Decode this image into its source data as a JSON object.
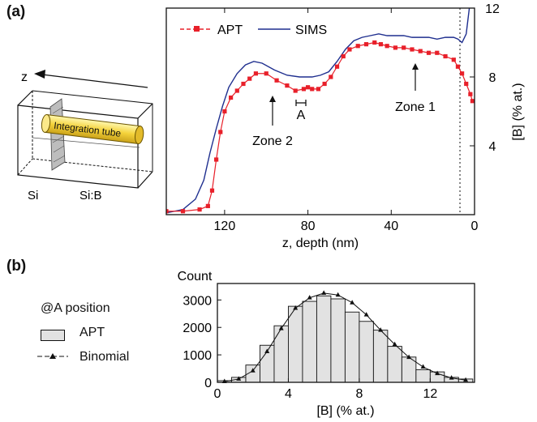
{
  "panel_a_label": "(a)",
  "panel_b_label": "(b)",
  "inset": {
    "axis_label": "z",
    "tube_label": "Integration tube",
    "left_region": "Si",
    "right_region": "Si:B"
  },
  "chart_data": [
    {
      "type": "line",
      "xlabel": "z, depth (nm)",
      "ylabel": "[B] (% at.)",
      "xlim": [
        148,
        0
      ],
      "ylim": [
        0,
        12
      ],
      "x_ticks": [
        120,
        80,
        40,
        0
      ],
      "y_ticks": [
        4,
        8,
        12
      ],
      "y_axis_side": "right",
      "legend": {
        "placement": "top-left",
        "entries": [
          "APT",
          "SIMS"
        ]
      },
      "annotations": [
        "Zone 2",
        "A",
        "Zone 1"
      ],
      "detection_limit_depth": 7,
      "colors": {
        "APT": "#e8202a",
        "SIMS": "#1f2f8f"
      },
      "series": [
        {
          "name": "APT",
          "marker": "square",
          "x": [
            148,
            140,
            132,
            128,
            126,
            124,
            122,
            120,
            117,
            114,
            111,
            108,
            105,
            100,
            95,
            90,
            86,
            82,
            80,
            78,
            75,
            72,
            69,
            66,
            63,
            60,
            56,
            52,
            48,
            45,
            42,
            38,
            34,
            30,
            26,
            22,
            18,
            14,
            10,
            8,
            6,
            4,
            2,
            1
          ],
          "y": [
            0.2,
            0.2,
            0.3,
            0.5,
            1.4,
            3.2,
            4.8,
            6.0,
            6.8,
            7.2,
            7.6,
            7.9,
            8.2,
            8.2,
            7.8,
            7.5,
            7.2,
            7.3,
            7.4,
            7.3,
            7.3,
            7.6,
            8.0,
            8.6,
            9.2,
            9.6,
            9.8,
            9.9,
            10.0,
            9.9,
            9.8,
            9.7,
            9.7,
            9.6,
            9.5,
            9.4,
            9.4,
            9.2,
            9.0,
            8.6,
            8.2,
            7.6,
            7.0,
            6.6
          ]
        },
        {
          "name": "SIMS",
          "x": [
            148,
            140,
            134,
            130,
            127,
            124,
            121,
            118,
            114,
            110,
            106,
            102,
            96,
            90,
            84,
            78,
            74,
            70,
            66,
            62,
            58,
            54,
            50,
            46,
            42,
            38,
            34,
            30,
            26,
            22,
            18,
            14,
            10,
            8,
            6,
            4,
            3,
            2,
            1,
            0
          ],
          "y": [
            0.1,
            0.3,
            0.9,
            2.0,
            3.6,
            5.0,
            6.3,
            7.4,
            8.2,
            8.7,
            8.9,
            8.8,
            8.4,
            8.1,
            8.0,
            8.0,
            8.1,
            8.3,
            8.9,
            9.6,
            10.1,
            10.3,
            10.4,
            10.5,
            10.4,
            10.4,
            10.4,
            10.3,
            10.3,
            10.3,
            10.2,
            10.3,
            10.3,
            10.2,
            10.0,
            10.5,
            11.5,
            12.5,
            13.5,
            14.0
          ]
        }
      ]
    },
    {
      "type": "bar",
      "title": "@A position",
      "xlabel": "[B] (% at.)",
      "ylabel": "Count",
      "xlim": [
        0,
        14.5
      ],
      "ylim": [
        0,
        3600
      ],
      "x_ticks": [
        0,
        4,
        8,
        12
      ],
      "y_ticks": [
        0,
        1000,
        2000,
        3000
      ],
      "legend": {
        "placement": "left",
        "entries": [
          "APT",
          "Binomial"
        ]
      },
      "categories": [
        0,
        0.8,
        1.6,
        2.4,
        3.2,
        4.0,
        4.8,
        5.6,
        6.4,
        7.2,
        8.0,
        8.8,
        9.6,
        10.4,
        11.2,
        12.0,
        12.8,
        13.6
      ],
      "series": [
        {
          "name": "APT",
          "values": [
            60,
            180,
            630,
            1350,
            2060,
            2770,
            2950,
            3150,
            3040,
            2560,
            2220,
            1900,
            1310,
            920,
            460,
            380,
            180,
            120
          ]
        },
        {
          "name": "Binomial",
          "x": [
            0.4,
            1.2,
            2.0,
            2.8,
            3.6,
            4.4,
            5.2,
            6.0,
            6.8,
            7.6,
            8.4,
            9.2,
            10.0,
            10.8,
            11.6,
            12.4,
            13.2,
            14.0
          ],
          "values": [
            30,
            120,
            420,
            1120,
            1960,
            2700,
            3080,
            3250,
            3180,
            2900,
            2460,
            1900,
            1380,
            910,
            560,
            320,
            160,
            80
          ]
        }
      ]
    }
  ]
}
